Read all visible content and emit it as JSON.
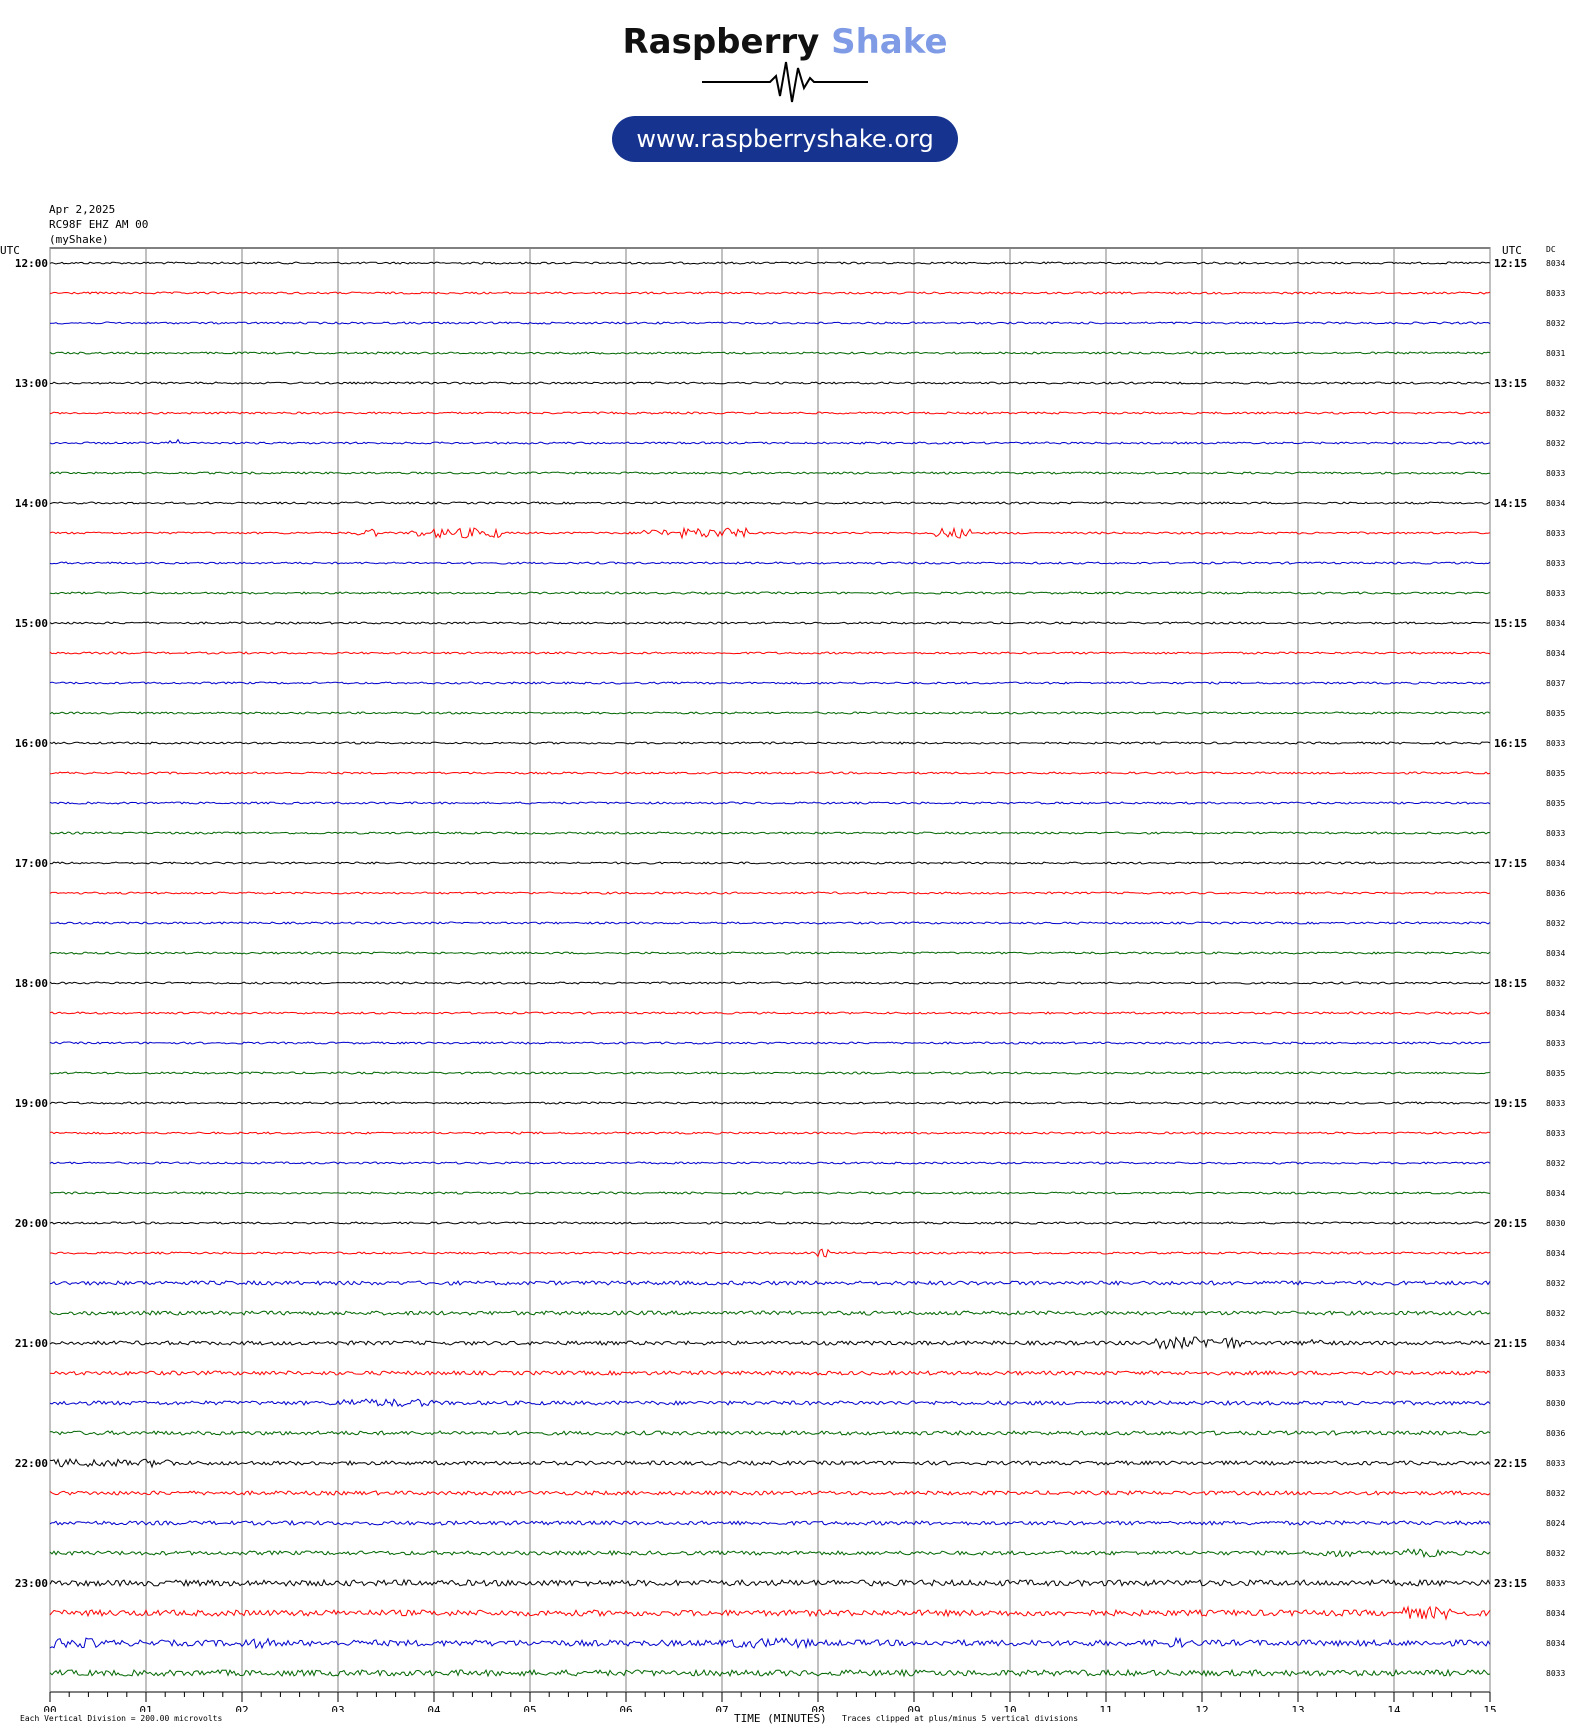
{
  "logo": {
    "brand_word1": "Raspberry",
    "brand_word2": "Shake",
    "url": "www.raspberryshake.org",
    "brand_color": "#16348f",
    "accent_color": "#7f9be6"
  },
  "header": {
    "date": "Apr 2,2025",
    "station": "RC98F EHZ AM 00",
    "owner": "(myShake)"
  },
  "chart_data": {
    "type": "line",
    "title": "",
    "xlabel": "TIME (MINUTES)",
    "ylabel": "",
    "left_axis_label": "UTC",
    "right_axis_label": "UTC",
    "dc_label": "DC",
    "x_ticks": [
      "00",
      "01",
      "02",
      "03",
      "04",
      "05",
      "06",
      "07",
      "08",
      "09",
      "10",
      "11",
      "12",
      "13",
      "14",
      "15"
    ],
    "xlim": [
      0,
      15
    ],
    "trace_colors": [
      "#000000",
      "#ff0000",
      "#0000cc",
      "#006600"
    ],
    "left_hour_labels": [
      "12:00",
      "13:00",
      "14:00",
      "15:00",
      "16:00",
      "17:00",
      "18:00",
      "19:00",
      "20:00",
      "21:00",
      "22:00",
      "23:00"
    ],
    "right_hour_labels": [
      "12:15",
      "13:15",
      "14:15",
      "15:15",
      "16:15",
      "17:15",
      "18:15",
      "19:15",
      "20:15",
      "21:15",
      "22:15",
      "23:15"
    ],
    "dc_values": [
      "8034",
      "8033",
      "8032",
      "8031",
      "8032",
      "8032",
      "8032",
      "8033",
      "8034",
      "8033",
      "8033",
      "8033",
      "8034",
      "8034",
      "8037",
      "8035",
      "8033",
      "8035",
      "8035",
      "8033",
      "8034",
      "8036",
      "8032",
      "8034",
      "8032",
      "8034",
      "8033",
      "8035",
      "8033",
      "8033",
      "8032",
      "8034",
      "8030",
      "8034",
      "8032",
      "8032",
      "8034",
      "8033",
      "8030",
      "8036",
      "8033",
      "8032",
      "8024",
      "8032",
      "8033",
      "8034",
      "8034",
      "8033"
    ],
    "trace_noise": [
      1,
      1,
      1,
      1,
      1,
      1,
      1,
      1,
      1,
      1,
      1,
      1,
      1,
      1,
      1,
      1,
      1,
      1,
      1,
      1,
      1,
      1,
      1,
      1,
      1,
      1,
      1,
      1,
      1,
      1,
      1,
      1,
      1,
      1,
      2,
      2,
      2,
      2,
      2,
      2,
      2,
      2,
      2,
      2,
      3,
      3,
      3,
      3
    ],
    "events": [
      {
        "trace": 9,
        "start_min": 3.2,
        "end_min": 3.4,
        "amplitude": 4
      },
      {
        "trace": 9,
        "start_min": 3.75,
        "end_min": 3.9,
        "amplitude": 4
      },
      {
        "trace": 9,
        "start_min": 4.0,
        "end_min": 4.7,
        "amplitude": 5
      },
      {
        "trace": 9,
        "start_min": 6.15,
        "end_min": 6.45,
        "amplitude": 4
      },
      {
        "trace": 9,
        "start_min": 6.55,
        "end_min": 7.25,
        "amplitude": 5
      },
      {
        "trace": 9,
        "start_min": 9.2,
        "end_min": 9.6,
        "amplitude": 5
      },
      {
        "trace": 6,
        "start_min": 1.25,
        "end_min": 1.35,
        "amplitude": 4
      },
      {
        "trace": 33,
        "start_min": 8.0,
        "end_min": 8.15,
        "amplitude": 4
      },
      {
        "trace": 36,
        "start_min": 11.5,
        "end_min": 12.4,
        "amplitude": 6
      },
      {
        "trace": 36,
        "start_min": 13.1,
        "end_min": 13.3,
        "amplitude": 5
      },
      {
        "trace": 38,
        "start_min": 3.0,
        "end_min": 4.0,
        "amplitude": 4
      },
      {
        "trace": 40,
        "start_min": 0.0,
        "end_min": 0.8,
        "amplitude": 4
      },
      {
        "trace": 40,
        "start_min": 0.9,
        "end_min": 1.3,
        "amplitude": 4
      },
      {
        "trace": 43,
        "start_min": 13.2,
        "end_min": 13.6,
        "amplitude": 4
      },
      {
        "trace": 43,
        "start_min": 14.1,
        "end_min": 14.5,
        "amplitude": 4
      },
      {
        "trace": 45,
        "start_min": 14.1,
        "end_min": 14.7,
        "amplitude": 6
      },
      {
        "trace": 46,
        "start_min": 0.0,
        "end_min": 0.5,
        "amplitude": 5
      },
      {
        "trace": 46,
        "start_min": 2.0,
        "end_min": 2.3,
        "amplitude": 5
      },
      {
        "trace": 46,
        "start_min": 7.1,
        "end_min": 7.9,
        "amplitude": 5
      },
      {
        "trace": 46,
        "start_min": 11.6,
        "end_min": 11.8,
        "amplitude": 5
      }
    ]
  },
  "footer": {
    "vertical_division": "Each Vertical Division =  200.00 microvolts",
    "clip_note": "Traces clipped at plus/minus 5 vertical divisions"
  }
}
